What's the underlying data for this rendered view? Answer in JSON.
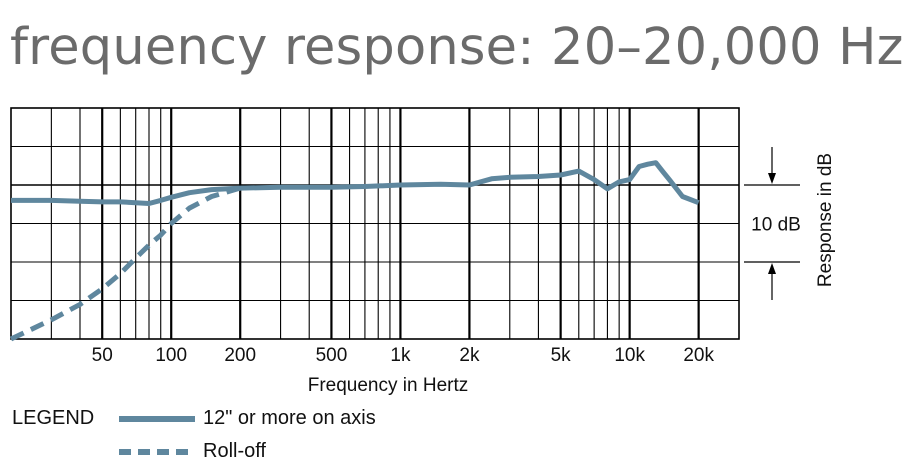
{
  "title": "frequency response: 20–20,000 Hz",
  "legend": {
    "heading": "LEGEND",
    "items": [
      {
        "label": "12\" or more on axis",
        "style": "solid"
      },
      {
        "label": "Roll-off",
        "style": "dashed"
      }
    ]
  },
  "colors": {
    "series": "#5f879e",
    "grid": "#000000",
    "text": "#111111",
    "title": "#6b6b6b"
  },
  "chart_data": {
    "type": "line",
    "title": "frequency response: 20–20,000 Hz",
    "xlabel": "Frequency in Hertz",
    "ylabel": "Response in dB",
    "x_scale": "log",
    "xlim": [
      20,
      30000
    ],
    "ylim": [
      -20,
      10
    ],
    "grid": true,
    "x_ticks": [
      {
        "value": 50,
        "label": "50"
      },
      {
        "value": 100,
        "label": "100"
      },
      {
        "value": 200,
        "label": "200"
      },
      {
        "value": 500,
        "label": "500"
      },
      {
        "value": 1000,
        "label": "1k"
      },
      {
        "value": 2000,
        "label": "2k"
      },
      {
        "value": 5000,
        "label": "5k"
      },
      {
        "value": 10000,
        "label": "10k"
      },
      {
        "value": 20000,
        "label": "20k"
      }
    ],
    "scale_annotation": {
      "label": "10 dB",
      "from": -10,
      "to": 0
    },
    "series": [
      {
        "name": "12\" or more on axis",
        "style": "solid",
        "x": [
          20,
          30,
          40,
          50,
          60,
          70,
          80,
          90,
          100,
          120,
          150,
          200,
          300,
          500,
          700,
          1000,
          1500,
          2000,
          2500,
          3000,
          4000,
          5000,
          6000,
          7000,
          8000,
          9000,
          10000,
          11000,
          12000,
          13000,
          14000,
          15000,
          17000,
          20000
        ],
        "y": [
          -2.0,
          -2.0,
          -2.1,
          -2.2,
          -2.2,
          -2.3,
          -2.4,
          -2.0,
          -1.6,
          -1.0,
          -0.6,
          -0.4,
          -0.3,
          -0.3,
          -0.2,
          0.0,
          0.1,
          0.0,
          0.8,
          1.0,
          1.1,
          1.3,
          1.8,
          0.7,
          -0.5,
          0.4,
          0.7,
          2.4,
          2.7,
          2.9,
          1.7,
          0.6,
          -1.5,
          -2.3
        ]
      },
      {
        "name": "Roll-off",
        "style": "dashed",
        "x": [
          20,
          30,
          40,
          50,
          60,
          70,
          80,
          90,
          100,
          120,
          150,
          200
        ],
        "y": [
          -20.0,
          -17.5,
          -15.5,
          -13.5,
          -11.5,
          -9.5,
          -7.8,
          -6.5,
          -5.0,
          -3.0,
          -1.5,
          -0.4
        ]
      }
    ]
  }
}
